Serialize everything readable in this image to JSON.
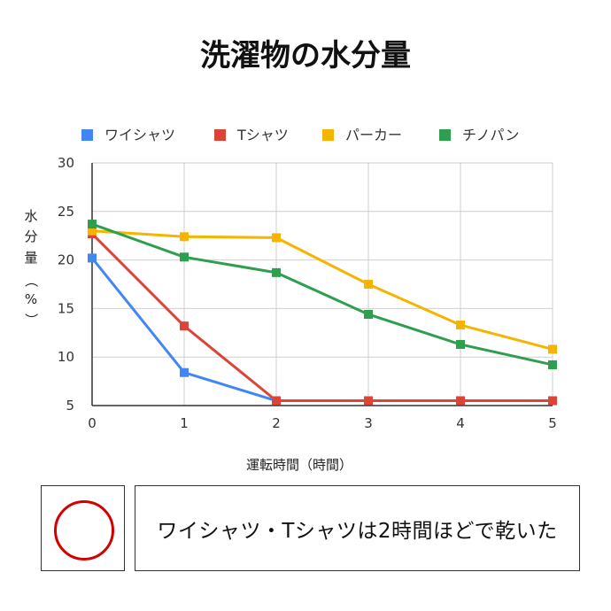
{
  "chart_data": {
    "type": "line",
    "title": "洗濯物の水分量",
    "xlabel": "運転時間（時間）",
    "ylabel": [
      "水",
      "分",
      "量",
      "（",
      "%",
      "）"
    ],
    "x": [
      0,
      1,
      2,
      3,
      4,
      5
    ],
    "ylim": [
      5,
      30
    ],
    "yticks": [
      5,
      10,
      15,
      20,
      25,
      30
    ],
    "grid": true,
    "legend_position": "top",
    "series": [
      {
        "name": "ワイシャツ",
        "color": "#4285F4",
        "values": [
          20.2,
          8.4,
          5.5,
          null,
          null,
          null
        ]
      },
      {
        "name": "Tシャツ",
        "color": "#DB4437",
        "values": [
          22.7,
          13.2,
          5.5,
          5.5,
          5.5,
          5.5
        ]
      },
      {
        "name": "パーカー",
        "color": "#F4B400",
        "values": [
          23.0,
          22.4,
          22.3,
          17.5,
          13.3,
          10.8
        ]
      },
      {
        "name": "チノパン",
        "color": "#2E9E4F",
        "values": [
          23.7,
          20.3,
          18.7,
          14.4,
          11.3,
          9.2
        ]
      }
    ]
  },
  "result": {
    "mark": "circle-mark",
    "mark_color": "#d40000",
    "note": "ワイシャツ・Tシャツは2時間ほどで乾いた"
  }
}
